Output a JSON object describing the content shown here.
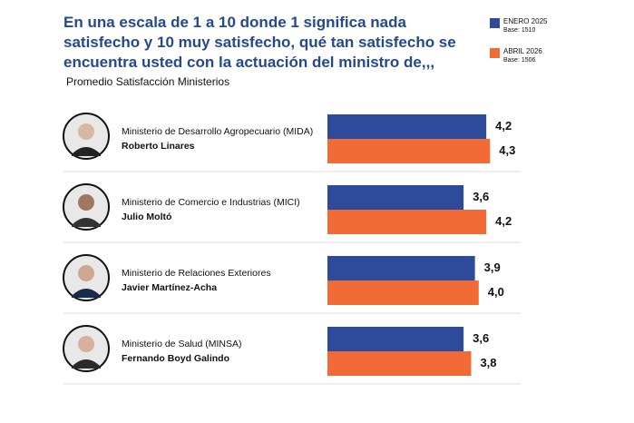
{
  "chart_data": {
    "type": "bar",
    "title": "En una escala de 1 a 10 donde 1 significa nada satisfecho y 10 muy satisfecho, qué tan satisfecho se encuentra usted con la actuación del ministro de,,,",
    "subtitle": "Promedio Satisfacción Ministerios",
    "categories": [
      "Ministerio de Desarrollo Agropecuario (MIDA)",
      "Ministerio de Comercio e Industrias (MICI)",
      "Ministerio de Relaciones Exteriores",
      "Ministerio de Salud (MINSA)"
    ],
    "ministers": [
      "Roberto Linares",
      "Julio Moltó",
      "Javier Martínez-Acha",
      "Fernando Boyd Galindo"
    ],
    "series": [
      {
        "name": "ENERO 2025",
        "base": "Base: 1510",
        "color": "#2d4a9b",
        "values": [
          4.2,
          3.6,
          3.9,
          3.6
        ],
        "value_labels": [
          "4,2",
          "3,6",
          "3,9",
          "3,6"
        ]
      },
      {
        "name": "ABRIL 2026",
        "base": "Base: 1506",
        "color": "#f26a35",
        "values": [
          4.3,
          4.2,
          4.0,
          3.8
        ],
        "value_labels": [
          "4,3",
          "4,2",
          "4,0",
          "3,8"
        ]
      }
    ]
  }
}
